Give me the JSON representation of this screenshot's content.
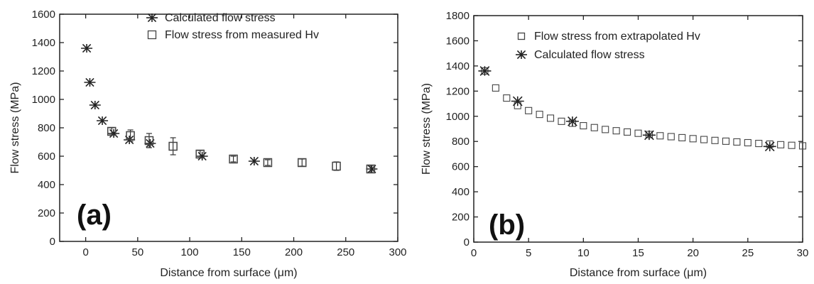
{
  "chart_data": [
    {
      "type": "scatter",
      "panel_label": "(a)",
      "xlabel": "Distance from surface (μm)",
      "ylabel": "Flow stress (MPa)",
      "xlim": [
        -25,
        300
      ],
      "ylim": [
        0,
        1600
      ],
      "xticks": [
        0,
        50,
        100,
        150,
        200,
        250,
        300
      ],
      "yticks": [
        0,
        200,
        400,
        600,
        800,
        1000,
        1200,
        1400,
        1600
      ],
      "grid": false,
      "legend_position": "top-right",
      "series": [
        {
          "name": "Calculated flow stress",
          "marker": "asterisk",
          "points": [
            {
              "x": 1,
              "y": 1360
            },
            {
              "x": 4,
              "y": 1120
            },
            {
              "x": 9,
              "y": 960
            },
            {
              "x": 16,
              "y": 850
            },
            {
              "x": 27,
              "y": 760
            },
            {
              "x": 42,
              "y": 715
            },
            {
              "x": 62,
              "y": 690
            },
            {
              "x": 112,
              "y": 600
            },
            {
              "x": 162,
              "y": 565
            },
            {
              "x": 275,
              "y": 510
            }
          ]
        },
        {
          "name": "Flow stress from measured Hv",
          "marker": "square",
          "points": [
            {
              "x": 25,
              "y": 775,
              "err": 25
            },
            {
              "x": 43,
              "y": 745,
              "err": 40
            },
            {
              "x": 61,
              "y": 710,
              "err": 50
            },
            {
              "x": 84,
              "y": 670,
              "err": 60
            },
            {
              "x": 110,
              "y": 615,
              "err": 25
            },
            {
              "x": 142,
              "y": 580,
              "err": 20
            },
            {
              "x": 175,
              "y": 555,
              "err": 20
            },
            {
              "x": 208,
              "y": 555,
              "err": 25
            },
            {
              "x": 241,
              "y": 530,
              "err": 30
            },
            {
              "x": 274,
              "y": 510,
              "err": 25
            }
          ]
        }
      ]
    },
    {
      "type": "scatter",
      "panel_label": "(b)",
      "xlabel": "Distance from surface (μm)",
      "ylabel": "Flow stress (MPa)",
      "xlim": [
        0,
        30
      ],
      "ylim": [
        0,
        1800
      ],
      "xticks": [
        0,
        5,
        10,
        15,
        20,
        25,
        30
      ],
      "yticks": [
        0,
        200,
        400,
        600,
        800,
        1000,
        1200,
        1400,
        1600,
        1800
      ],
      "grid": false,
      "legend_position": "top-right",
      "series": [
        {
          "name": "Flow stress from extrapolated Hv",
          "marker": "square",
          "points": [
            {
              "x": 1,
              "y": 1360
            },
            {
              "x": 2,
              "y": 1225
            },
            {
              "x": 3,
              "y": 1145
            },
            {
              "x": 4,
              "y": 1085
            },
            {
              "x": 5,
              "y": 1045
            },
            {
              "x": 6,
              "y": 1015
            },
            {
              "x": 7,
              "y": 985
            },
            {
              "x": 8,
              "y": 960
            },
            {
              "x": 9,
              "y": 945
            },
            {
              "x": 10,
              "y": 925
            },
            {
              "x": 11,
              "y": 910
            },
            {
              "x": 12,
              "y": 895
            },
            {
              "x": 13,
              "y": 885
            },
            {
              "x": 14,
              "y": 875
            },
            {
              "x": 15,
              "y": 865
            },
            {
              "x": 16,
              "y": 855
            },
            {
              "x": 17,
              "y": 845
            },
            {
              "x": 18,
              "y": 838
            },
            {
              "x": 19,
              "y": 830
            },
            {
              "x": 20,
              "y": 822
            },
            {
              "x": 21,
              "y": 815
            },
            {
              "x": 22,
              "y": 808
            },
            {
              "x": 23,
              "y": 802
            },
            {
              "x": 24,
              "y": 796
            },
            {
              "x": 25,
              "y": 790
            },
            {
              "x": 26,
              "y": 784
            },
            {
              "x": 27,
              "y": 779
            },
            {
              "x": 28,
              "y": 774
            },
            {
              "x": 29,
              "y": 769
            },
            {
              "x": 30,
              "y": 765
            }
          ]
        },
        {
          "name": "Calculated flow stress",
          "marker": "asterisk",
          "points": [
            {
              "x": 1,
              "y": 1360
            },
            {
              "x": 4,
              "y": 1120
            },
            {
              "x": 9,
              "y": 960
            },
            {
              "x": 16,
              "y": 850
            },
            {
              "x": 27,
              "y": 760
            }
          ]
        }
      ]
    }
  ]
}
